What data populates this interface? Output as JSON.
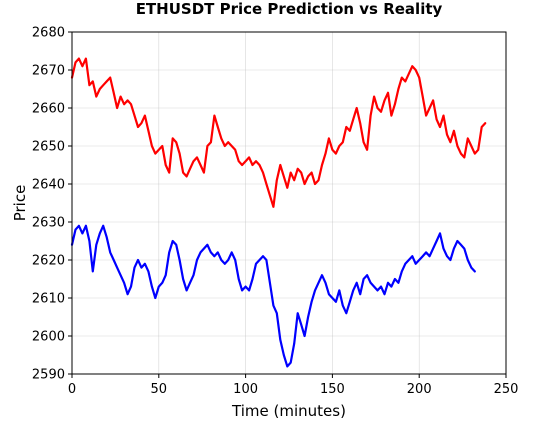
{
  "chart_data": {
    "type": "line",
    "title": "ETHUSDT Price Prediction vs Reality",
    "xlabel": "Time (minutes)",
    "ylabel": "Price",
    "xlim": [
      0,
      250
    ],
    "ylim": [
      2590,
      2680
    ],
    "xticks": [
      0,
      50,
      100,
      150,
      200,
      250
    ],
    "yticks": [
      2590,
      2600,
      2610,
      2620,
      2630,
      2640,
      2650,
      2660,
      2670,
      2680
    ],
    "xtick_labels": [
      "0",
      "50",
      "100",
      "150",
      "200",
      "250"
    ],
    "ytick_labels": [
      "2590",
      "2600",
      "2610",
      "2620",
      "2630",
      "2640",
      "2650",
      "2660",
      "2670",
      "2680"
    ],
    "grid": true,
    "legend": false,
    "series": [
      {
        "color": "#ff0000",
        "x": [
          0,
          2,
          4,
          6,
          8,
          10,
          12,
          14,
          16,
          18,
          20,
          22,
          24,
          26,
          28,
          30,
          32,
          34,
          36,
          38,
          40,
          42,
          44,
          46,
          48,
          50,
          52,
          54,
          56,
          58,
          60,
          62,
          64,
          66,
          68,
          70,
          72,
          74,
          76,
          78,
          80,
          82,
          84,
          86,
          88,
          90,
          92,
          94,
          96,
          98,
          100,
          102,
          104,
          106,
          108,
          110,
          112,
          114,
          116,
          118,
          120,
          122,
          124,
          126,
          128,
          130,
          132,
          134,
          136,
          138,
          140,
          142,
          144,
          146,
          148,
          150,
          152,
          154,
          156,
          158,
          160,
          162,
          164,
          166,
          168,
          170,
          172,
          174,
          176,
          178,
          180,
          182,
          184,
          186,
          188,
          190,
          192,
          194,
          196,
          198,
          200,
          202,
          204,
          206,
          208,
          210,
          212,
          214,
          216,
          218,
          220,
          222,
          224,
          226,
          228,
          230,
          232,
          234,
          236,
          238
        ],
        "values": [
          2668,
          2672,
          2673,
          2671,
          2673,
          2666,
          2667,
          2663,
          2665,
          2666,
          2667,
          2668,
          2664,
          2660,
          2663,
          2661,
          2662,
          2661,
          2658,
          2655,
          2656,
          2658,
          2654,
          2650,
          2648,
          2649,
          2650,
          2645,
          2643,
          2652,
          2651,
          2648,
          2643,
          2642,
          2644,
          2646,
          2647,
          2645,
          2643,
          2650,
          2651,
          2658,
          2655,
          2652,
          2650,
          2651,
          2650,
          2649,
          2646,
          2645,
          2646,
          2647,
          2645,
          2646,
          2645,
          2643,
          2640,
          2637,
          2634,
          2641,
          2645,
          2642,
          2639,
          2643,
          2641,
          2644,
          2643,
          2640,
          2642,
          2643,
          2640,
          2641,
          2645,
          2648,
          2652,
          2649,
          2648,
          2650,
          2651,
          2655,
          2654,
          2657,
          2660,
          2656,
          2651,
          2649,
          2658,
          2663,
          2660,
          2659,
          2662,
          2664,
          2658,
          2661,
          2665,
          2668,
          2667,
          2669,
          2671,
          2670,
          2668,
          2663,
          2658,
          2660,
          2662,
          2657,
          2655,
          2658,
          2653,
          2651,
          2654,
          2650,
          2648,
          2647,
          2652,
          2650,
          2648,
          2649,
          2655,
          2656
        ]
      },
      {
        "color": "#0000ff",
        "x": [
          0,
          2,
          4,
          6,
          8,
          10,
          12,
          14,
          16,
          18,
          20,
          22,
          24,
          26,
          28,
          30,
          32,
          34,
          36,
          38,
          40,
          42,
          44,
          46,
          48,
          50,
          52,
          54,
          56,
          58,
          60,
          62,
          64,
          66,
          68,
          70,
          72,
          74,
          76,
          78,
          80,
          82,
          84,
          86,
          88,
          90,
          92,
          94,
          96,
          98,
          100,
          102,
          104,
          106,
          108,
          110,
          112,
          114,
          116,
          118,
          120,
          122,
          124,
          126,
          128,
          130,
          132,
          134,
          136,
          138,
          140,
          142,
          144,
          146,
          148,
          150,
          152,
          154,
          156,
          158,
          160,
          162,
          164,
          166,
          168,
          170,
          172,
          174,
          176,
          178,
          180,
          182,
          184,
          186,
          188,
          190,
          192,
          194,
          196,
          198,
          200,
          202,
          204,
          206,
          208,
          210,
          212,
          214,
          216,
          218,
          220,
          222,
          224,
          226,
          228,
          230,
          232
        ],
        "values": [
          2624,
          2628,
          2629,
          2627,
          2629,
          2625,
          2617,
          2624,
          2627,
          2629,
          2626,
          2622,
          2620,
          2618,
          2616,
          2614,
          2611,
          2613,
          2618,
          2620,
          2618,
          2619,
          2617,
          2613,
          2610,
          2613,
          2614,
          2616,
          2622,
          2625,
          2624,
          2620,
          2615,
          2612,
          2614,
          2616,
          2620,
          2622,
          2623,
          2624,
          2622,
          2621,
          2622,
          2620,
          2619,
          2620,
          2622,
          2620,
          2615,
          2612,
          2613,
          2612,
          2615,
          2619,
          2620,
          2621,
          2620,
          2614,
          2608,
          2606,
          2599,
          2595,
          2592,
          2593,
          2598,
          2606,
          2603,
          2600,
          2605,
          2609,
          2612,
          2614,
          2616,
          2614,
          2611,
          2610,
          2609,
          2612,
          2608,
          2606,
          2609,
          2612,
          2614,
          2611,
          2615,
          2616,
          2614,
          2613,
          2612,
          2613,
          2611,
          2614,
          2613,
          2615,
          2614,
          2617,
          2619,
          2620,
          2621,
          2619,
          2620,
          2621,
          2622,
          2621,
          2623,
          2625,
          2627,
          2623,
          2621,
          2620,
          2623,
          2625,
          2624,
          2623,
          2620,
          2618,
          2617
        ]
      }
    ]
  }
}
